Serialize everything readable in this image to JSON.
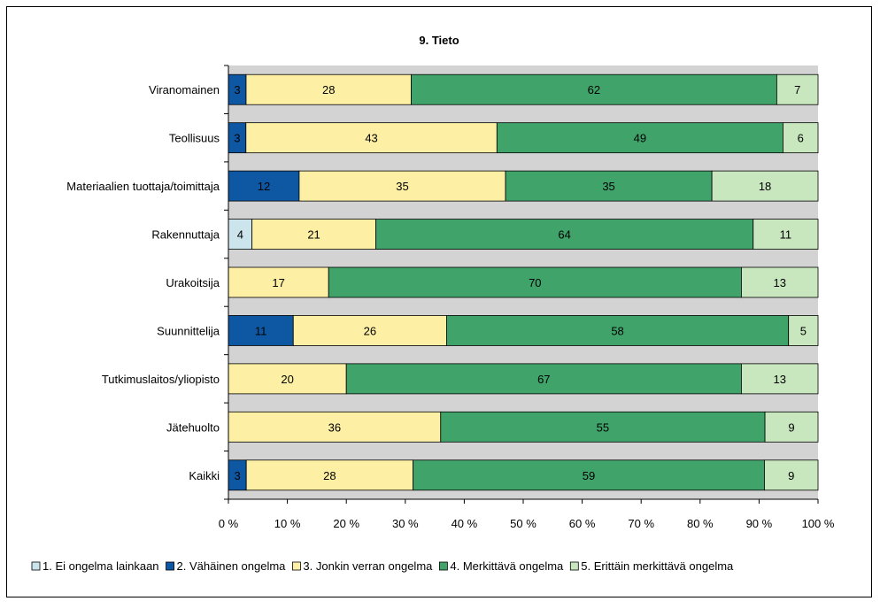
{
  "chart_data": {
    "type": "bar",
    "orientation": "horizontal",
    "stacked": "percent",
    "title": "9. Tieto",
    "categories": [
      "Viranomainen",
      "Teollisuus",
      "Materiaalien tuottaja/toimittaja",
      "Rakennuttaja",
      "Urakoitsija",
      "Suunnittelija",
      "Tutkimuslaitos/yliopisto",
      "Jätehuolto",
      "Kaikki"
    ],
    "series": [
      {
        "name": "1. Ei ongelma lainkaan",
        "color": "#cce4ec",
        "values": [
          0,
          0,
          0,
          4,
          0,
          0,
          0,
          0,
          0
        ]
      },
      {
        "name": "2. Vähäinen ongelma",
        "color": "#0d57a3",
        "values": [
          3,
          3,
          12,
          0,
          0,
          11,
          0,
          0,
          3
        ]
      },
      {
        "name": "3. Jonkin verran ongelma",
        "color": "#fdf0a4",
        "values": [
          28,
          43,
          35,
          21,
          17,
          26,
          20,
          36,
          28
        ]
      },
      {
        "name": "4. Merkittävä ongelma",
        "color": "#3fa36a",
        "values": [
          62,
          49,
          35,
          64,
          70,
          58,
          67,
          55,
          59
        ]
      },
      {
        "name": "5. Erittäin merkittävä ongelma",
        "color": "#c8e7be",
        "values": [
          7,
          6,
          18,
          11,
          13,
          5,
          13,
          9,
          9
        ]
      }
    ],
    "xticks": [
      "0 %",
      "10 %",
      "20 %",
      "30 %",
      "40 %",
      "50 %",
      "60 %",
      "70 %",
      "80 %",
      "90 %",
      "100 %"
    ],
    "xlim": [
      0,
      100
    ],
    "plot_background": "#d3d3d3",
    "legend_position": "bottom"
  }
}
